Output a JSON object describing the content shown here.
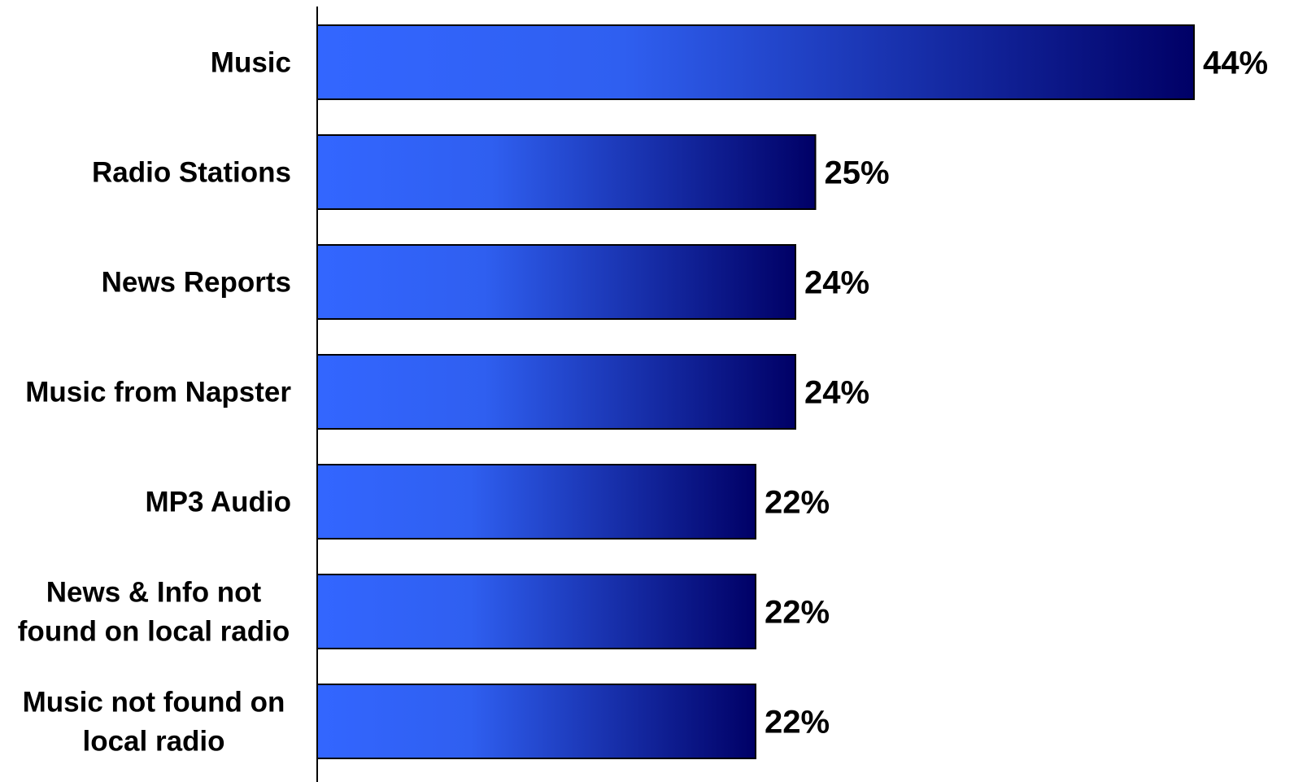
{
  "chart_data": {
    "type": "bar",
    "orientation": "horizontal",
    "title": "",
    "xlabel": "",
    "ylabel": "",
    "categories": [
      "Music",
      "Radio Stations",
      "News Reports",
      "Music from Napster",
      "MP3 Audio",
      "News & Info not found on local radio",
      "Music not found on local radio"
    ],
    "category_display_lines": [
      [
        "Music"
      ],
      [
        "Radio Stations"
      ],
      [
        "News Reports"
      ],
      [
        "Music from Napster"
      ],
      [
        "MP3 Audio"
      ],
      [
        "News & Info not",
        "found on local radio"
      ],
      [
        "Music not found on",
        "local radio"
      ]
    ],
    "values": [
      44,
      25,
      24,
      24,
      22,
      22,
      22
    ],
    "value_labels": [
      "44%",
      "25%",
      "24%",
      "24%",
      "22%",
      "22%",
      "22%"
    ],
    "unit": "%",
    "xlim": [
      0,
      44
    ],
    "grid": false,
    "legend": "none",
    "colors": {
      "bar_gradient_start": "#3366ff",
      "bar_gradient_end": "#000066",
      "bar_stroke": "#000000",
      "axis": "#000000",
      "text": "#000000"
    }
  }
}
